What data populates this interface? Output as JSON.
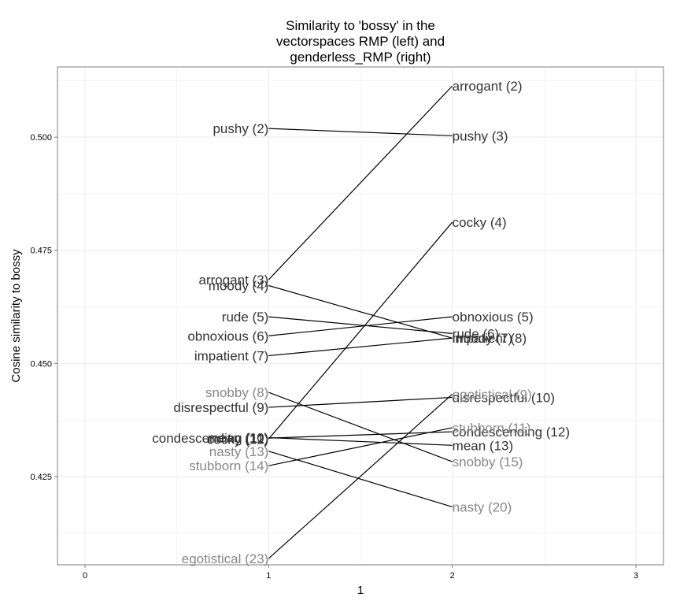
{
  "chart_data": {
    "type": "slope",
    "title": [
      "Similarity to 'bossy' in the",
      "vectorspaces RMP (left) and",
      "genderless_RMP (right)"
    ],
    "xlabel": "1",
    "ylabel": "Cosine similarity to bossy",
    "xlim": [
      -0.15,
      3.15
    ],
    "ylim": [
      0.4055,
      0.5155
    ],
    "x_ticks": [
      0,
      1,
      2,
      3
    ],
    "y_ticks": [
      0.425,
      0.45,
      0.475,
      0.5
    ],
    "y_tick_labels": [
      "0.425",
      "0.450",
      "0.475",
      "0.500"
    ],
    "grid": true,
    "colors": {
      "dark": "#333333",
      "light": "#888888",
      "line": "#000000",
      "grid": "#ebebeb",
      "panel_border": "#7f7f7f"
    },
    "words": [
      {
        "word": "pushy",
        "left": 0.5019,
        "right": 0.5003,
        "left_label": "pushy (2)",
        "right_label": "pushy (3)",
        "left_shade": "dark",
        "right_shade": "dark"
      },
      {
        "word": "arrogant",
        "left": 0.4685,
        "right": 0.5113,
        "left_label": "arrogant (3)",
        "right_label": "arrogant (2)",
        "left_shade": "dark",
        "right_shade": "dark"
      },
      {
        "word": "moody",
        "left": 0.4672,
        "right": 0.4556,
        "left_label": "moody (4)",
        "right_label": "moody (7)",
        "left_shade": "dark",
        "right_shade": "dark"
      },
      {
        "word": "rude",
        "left": 0.4603,
        "right": 0.4566,
        "left_label": "rude (5)",
        "right_label": "rude (6)",
        "left_shade": "dark",
        "right_shade": "dark"
      },
      {
        "word": "obnoxious",
        "left": 0.4561,
        "right": 0.4603,
        "left_label": "obnoxious (6)",
        "right_label": "obnoxious (5)",
        "left_shade": "dark",
        "right_shade": "dark"
      },
      {
        "word": "impatient",
        "left": 0.4517,
        "right": 0.4556,
        "left_label": "impatient (7)",
        "right_label": "impatient (8)",
        "left_shade": "dark",
        "right_shade": "dark"
      },
      {
        "word": "snobby",
        "left": 0.4436,
        "right": 0.4283,
        "left_label": "snobby (8)",
        "right_label": "snobby (15)",
        "left_shade": "light",
        "right_shade": "light"
      },
      {
        "word": "disrespectful",
        "left": 0.4403,
        "right": 0.4425,
        "left_label": "disrespectful (9)",
        "right_label": "disrespectful (10)",
        "left_shade": "dark",
        "right_shade": "dark"
      },
      {
        "word": "mean",
        "left": 0.4336,
        "right": 0.4319,
        "left_label": "mean (10)",
        "right_label": "mean (13)",
        "left_shade": "dark",
        "right_shade": "dark"
      },
      {
        "word": "condescending",
        "left": 0.4335,
        "right": 0.4349,
        "left_label": "condescending (11)",
        "right_label": "condescending (12)",
        "left_shade": "dark",
        "right_shade": "dark"
      },
      {
        "word": "cocky",
        "left": 0.4333,
        "right": 0.4812,
        "left_label": "cocky (12)",
        "right_label": "cocky (4)",
        "left_shade": "dark",
        "right_shade": "dark"
      },
      {
        "word": "nasty",
        "left": 0.4306,
        "right": 0.4183,
        "left_label": "nasty (13)",
        "right_label": "nasty (20)",
        "left_shade": "light",
        "right_shade": "light"
      },
      {
        "word": "stubborn",
        "left": 0.4274,
        "right": 0.4358,
        "left_label": "stubborn (14)",
        "right_label": "stubborn (11)",
        "left_shade": "light",
        "right_shade": "light"
      },
      {
        "word": "egotistical",
        "left": 0.4069,
        "right": 0.4432,
        "left_label": "egotistical (23)",
        "right_label": "egotistical (9)",
        "left_shade": "light",
        "right_shade": "light"
      }
    ]
  }
}
